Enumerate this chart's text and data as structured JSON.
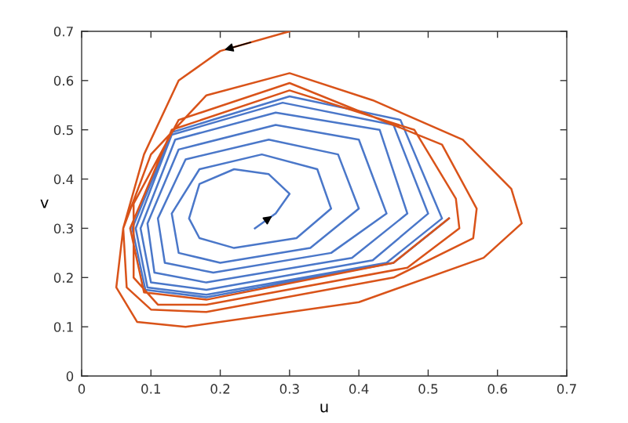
{
  "chart_data": {
    "type": "line",
    "xlabel": "u",
    "ylabel": "v",
    "xlim": [
      0,
      0.7
    ],
    "ylim": [
      0,
      0.7
    ],
    "xticks": [
      0,
      0.1,
      0.2,
      0.3,
      0.4,
      0.5,
      0.6,
      0.7
    ],
    "yticks": [
      0,
      0.1,
      0.2,
      0.3,
      0.4,
      0.5,
      0.6,
      0.7
    ],
    "grid": false,
    "marker": "none",
    "line_style": "solid",
    "series": [
      {
        "color": "#4a77c9",
        "x": [
          0.25,
          0.28,
          0.3,
          0.27,
          0.22,
          0.17,
          0.155,
          0.17,
          0.22,
          0.31,
          0.36,
          0.34,
          0.26,
          0.17,
          0.13,
          0.14,
          0.2,
          0.33,
          0.4,
          0.37,
          0.27,
          0.15,
          0.11,
          0.12,
          0.19,
          0.36,
          0.44,
          0.4,
          0.28,
          0.14,
          0.095,
          0.105,
          0.18,
          0.39,
          0.47,
          0.43,
          0.28,
          0.135,
          0.085,
          0.1,
          0.18,
          0.42,
          0.5,
          0.45,
          0.29,
          0.13,
          0.078,
          0.095,
          0.18,
          0.44,
          0.52,
          0.46,
          0.3,
          0.13,
          0.073,
          0.092,
          0.18,
          0.45,
          0.53
        ],
        "values": [
          0.3,
          0.33,
          0.37,
          0.41,
          0.42,
          0.39,
          0.32,
          0.28,
          0.26,
          0.28,
          0.34,
          0.42,
          0.45,
          0.42,
          0.33,
          0.25,
          0.23,
          0.26,
          0.34,
          0.45,
          0.48,
          0.44,
          0.32,
          0.23,
          0.21,
          0.25,
          0.33,
          0.48,
          0.51,
          0.46,
          0.31,
          0.21,
          0.19,
          0.24,
          0.33,
          0.5,
          0.535,
          0.48,
          0.3,
          0.19,
          0.175,
          0.235,
          0.33,
          0.51,
          0.555,
          0.49,
          0.3,
          0.18,
          0.165,
          0.23,
          0.32,
          0.52,
          0.568,
          0.495,
          0.3,
          0.175,
          0.16,
          0.23,
          0.32
        ]
      },
      {
        "color": "#d95319",
        "x": [
          0.3,
          0.2,
          0.14,
          0.09,
          0.06,
          0.05,
          0.08,
          0.15,
          0.4,
          0.58,
          0.635,
          0.62,
          0.55,
          0.42,
          0.3,
          0.18,
          0.1,
          0.06,
          0.065,
          0.1,
          0.18,
          0.45,
          0.565,
          0.57,
          0.52,
          0.3,
          0.14,
          0.075,
          0.075,
          0.11,
          0.18,
          0.47,
          0.545,
          0.54,
          0.48,
          0.3,
          0.13,
          0.07,
          0.09,
          0.18,
          0.45,
          0.53
        ],
        "values": [
          0.7,
          0.66,
          0.6,
          0.45,
          0.3,
          0.18,
          0.11,
          0.1,
          0.15,
          0.24,
          0.31,
          0.38,
          0.48,
          0.56,
          0.615,
          0.57,
          0.45,
          0.3,
          0.18,
          0.135,
          0.13,
          0.2,
          0.28,
          0.34,
          0.47,
          0.595,
          0.52,
          0.35,
          0.2,
          0.145,
          0.145,
          0.22,
          0.3,
          0.36,
          0.5,
          0.58,
          0.5,
          0.3,
          0.17,
          0.155,
          0.23,
          0.32
        ]
      }
    ]
  }
}
